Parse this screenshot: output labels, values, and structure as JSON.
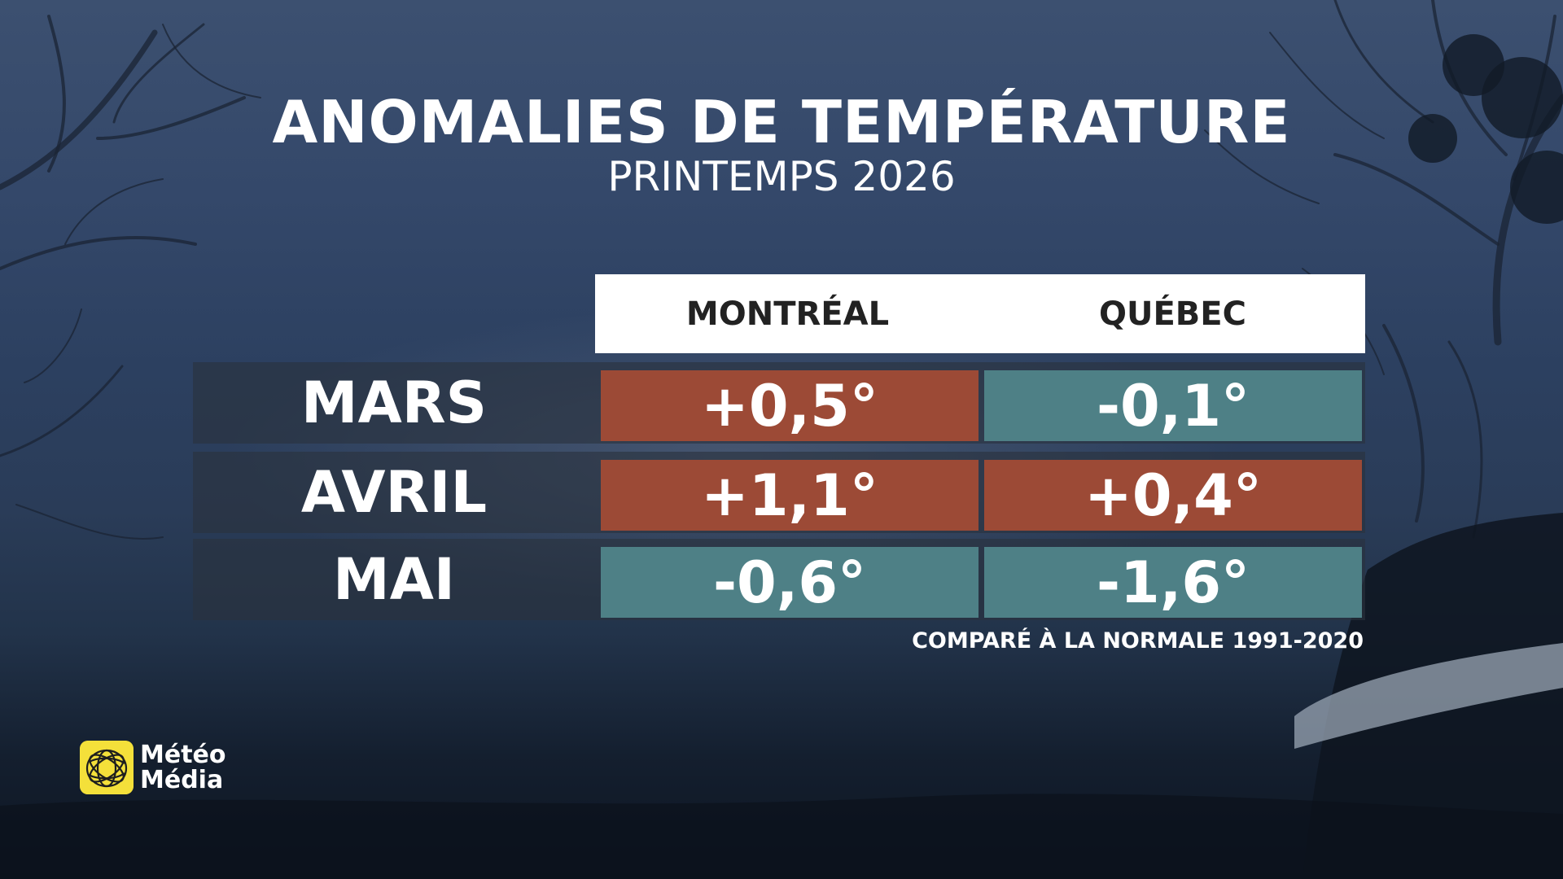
{
  "title": "ANOMALIES DE TEMPÉRATURE",
  "subtitle": "PRINTEMPS 2026",
  "table": {
    "columns": [
      "MONTRÉAL",
      "QUÉBEC"
    ],
    "rows": [
      {
        "month": "MARS",
        "values": [
          "+0,5°",
          "-0,1°"
        ],
        "types": [
          "warm",
          "cool"
        ]
      },
      {
        "month": "AVRIL",
        "values": [
          "+1,1°",
          "+0,4°"
        ],
        "types": [
          "warm",
          "warm"
        ]
      },
      {
        "month": "MAI",
        "values": [
          "-0,6°",
          "-1,6°"
        ],
        "types": [
          "cool",
          "cool"
        ]
      }
    ]
  },
  "footnote": "COMPARÉ À LA NORMALE 1991-2020",
  "logo": {
    "line1": "Météo",
    "line2": "Média",
    "icon": "meteomedia-globe-icon"
  },
  "colors": {
    "warm": "#9c4a36",
    "cool": "#4e8086",
    "header_bg": "#ffffff",
    "logo_yellow": "#f4e03a"
  }
}
